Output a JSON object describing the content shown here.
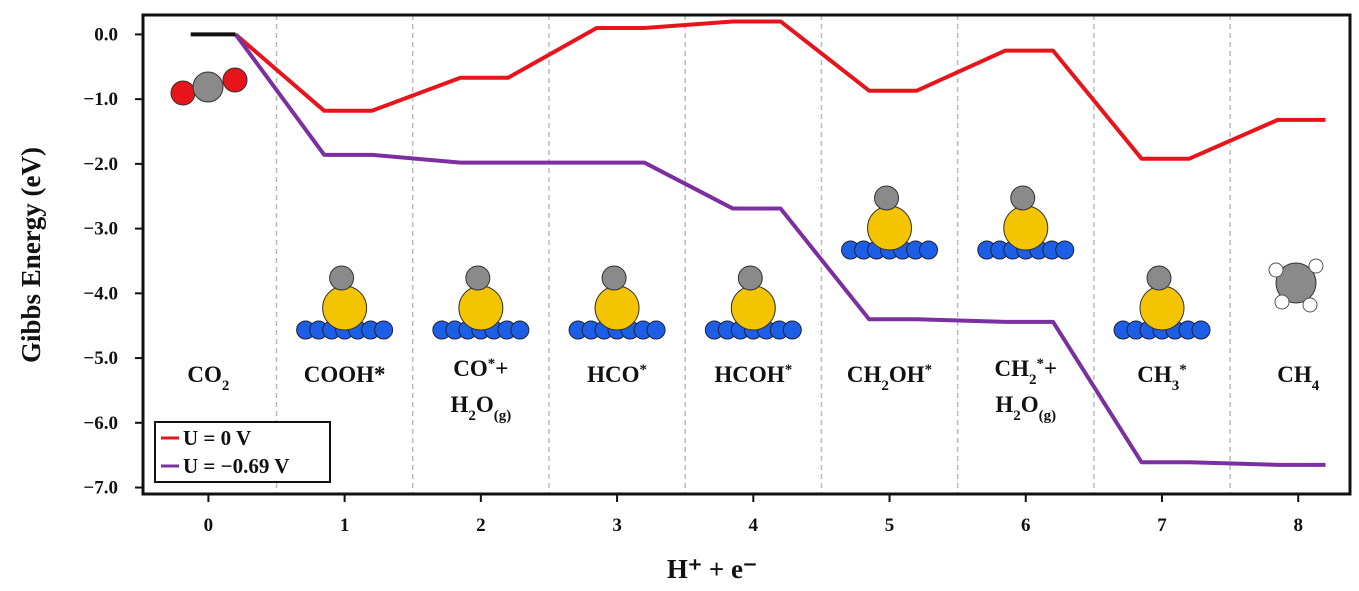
{
  "chart_data": {
    "type": "line",
    "x_label": "H⁺ + e⁻",
    "y_label": "Gibbs Energy (eV)",
    "x": [
      0,
      1,
      2,
      3,
      4,
      5,
      6,
      7,
      8
    ],
    "step_labels": [
      [
        [
          "CO",
          {
            "text": "2",
            "style": "sub"
          }
        ]
      ],
      [
        [
          "COOH*"
        ]
      ],
      [
        [
          "CO",
          {
            "text": "*",
            "style": "super"
          },
          "+"
        ],
        [
          "H",
          {
            "text": "2",
            "style": "sub"
          },
          "O",
          {
            "text": "(g)",
            "style": "sub"
          }
        ]
      ],
      [
        [
          "HCO",
          {
            "text": "*",
            "style": "super"
          }
        ]
      ],
      [
        [
          "HCOH",
          {
            "text": "*",
            "style": "super"
          }
        ]
      ],
      [
        [
          "CH",
          {
            "text": "2",
            "style": "sub"
          },
          "OH",
          {
            "text": "*",
            "style": "super"
          }
        ]
      ],
      [
        [
          "CH",
          {
            "text": "2",
            "style": "sub"
          },
          {
            "text": "*",
            "style": "super"
          },
          "+"
        ],
        [
          "H",
          {
            "text": "2",
            "style": "sub"
          },
          "O",
          {
            "text": "(g)",
            "style": "sub"
          }
        ]
      ],
      [
        [
          "CH",
          {
            "text": "3",
            "style": "sub"
          },
          {
            "text": "*",
            "style": "super"
          }
        ]
      ],
      [
        [
          "CH",
          {
            "text": "4",
            "style": "sub"
          }
        ]
      ]
    ],
    "series": [
      {
        "name": "U = 0 V",
        "color": "#e8141b",
        "values": [
          0,
          -1.18,
          -0.67,
          0.1,
          0.2,
          -0.87,
          -0.25,
          -1.92,
          -1.32
        ]
      },
      {
        "name": "U = −0.69 V",
        "color": "#7b2fa0",
        "values": [
          0,
          -1.86,
          -1.98,
          -1.98,
          -2.69,
          -4.4,
          -4.44,
          -6.61,
          -6.65
        ]
      }
    ],
    "xlim": [
      -0.48,
      8.38
    ],
    "ylim": [
      -7.1,
      0.3
    ],
    "xticks": [
      0,
      1,
      2,
      3,
      4,
      5,
      6,
      7,
      8
    ],
    "yticks": [
      {
        "value": 0,
        "label": "0.0"
      },
      {
        "value": -1,
        "label": "−1.0"
      },
      {
        "value": -2,
        "label": "−2.0"
      },
      {
        "value": -3,
        "label": "−3.0"
      },
      {
        "value": -4,
        "label": "−4.0"
      },
      {
        "value": -5,
        "label": "−5.0"
      },
      {
        "value": -6,
        "label": "−6.0"
      },
      {
        "value": -7,
        "label": "−7.0"
      }
    ],
    "legend": "lower left"
  }
}
